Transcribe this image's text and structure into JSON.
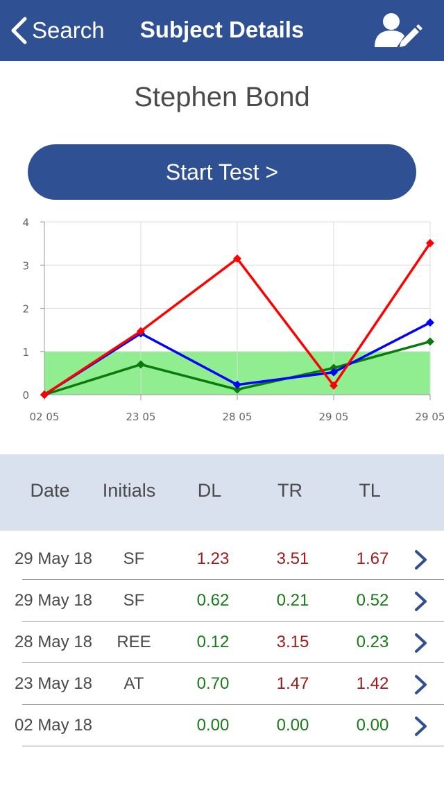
{
  "nav": {
    "back_label": "Search",
    "title": "Subject Details",
    "edit_icon": "user-edit-icon"
  },
  "subject": {
    "name": "Stephen Bond"
  },
  "start_button": {
    "label": "Start Test >"
  },
  "colors": {
    "brand": "#2f5193",
    "header_bg": "#d9e0ee",
    "normal_band": "#90ee90",
    "value_bad": "#9b1b1b",
    "value_good": "#1a7a1a",
    "series_dl": "#0a7a0a",
    "series_tr": "#ff0000",
    "series_tl": "#0000ff"
  },
  "chart_data": {
    "type": "line",
    "categories": [
      "02 05",
      "23 05",
      "28 05",
      "29 05",
      "29 05"
    ],
    "series": [
      {
        "values": [
          0.0,
          1.47,
          3.15,
          0.21,
          3.51
        ],
        "color": "#ff0000"
      },
      {
        "values": [
          0.0,
          1.42,
          0.23,
          0.52,
          1.67
        ],
        "color": "#0000ff"
      },
      {
        "values": [
          0.0,
          0.7,
          0.12,
          0.62,
          1.23
        ],
        "color": "#0a7a0a"
      }
    ],
    "ylim": [
      0,
      4
    ],
    "yticks": [
      "0",
      "1",
      "2",
      "3",
      "4"
    ],
    "normal_band": [
      0,
      1
    ],
    "grid": true
  },
  "table": {
    "headers": [
      "Date",
      "Initials",
      "DL",
      "TR",
      "TL"
    ],
    "rows": [
      {
        "date": "29 May 18",
        "initials": "SF",
        "dl": "1.23",
        "tr": "3.51",
        "tl": "1.67"
      },
      {
        "date": "29 May 18",
        "initials": "SF",
        "dl": "0.62",
        "tr": "0.21",
        "tl": "0.52"
      },
      {
        "date": "28 May 18",
        "initials": "REE",
        "dl": "0.12",
        "tr": "3.15",
        "tl": "0.23"
      },
      {
        "date": "23 May 18",
        "initials": "AT",
        "dl": "0.70",
        "tr": "1.47",
        "tl": "1.42"
      },
      {
        "date": "02 May 18",
        "initials": "",
        "dl": "0.00",
        "tr": "0.00",
        "tl": "0.00"
      }
    ]
  }
}
